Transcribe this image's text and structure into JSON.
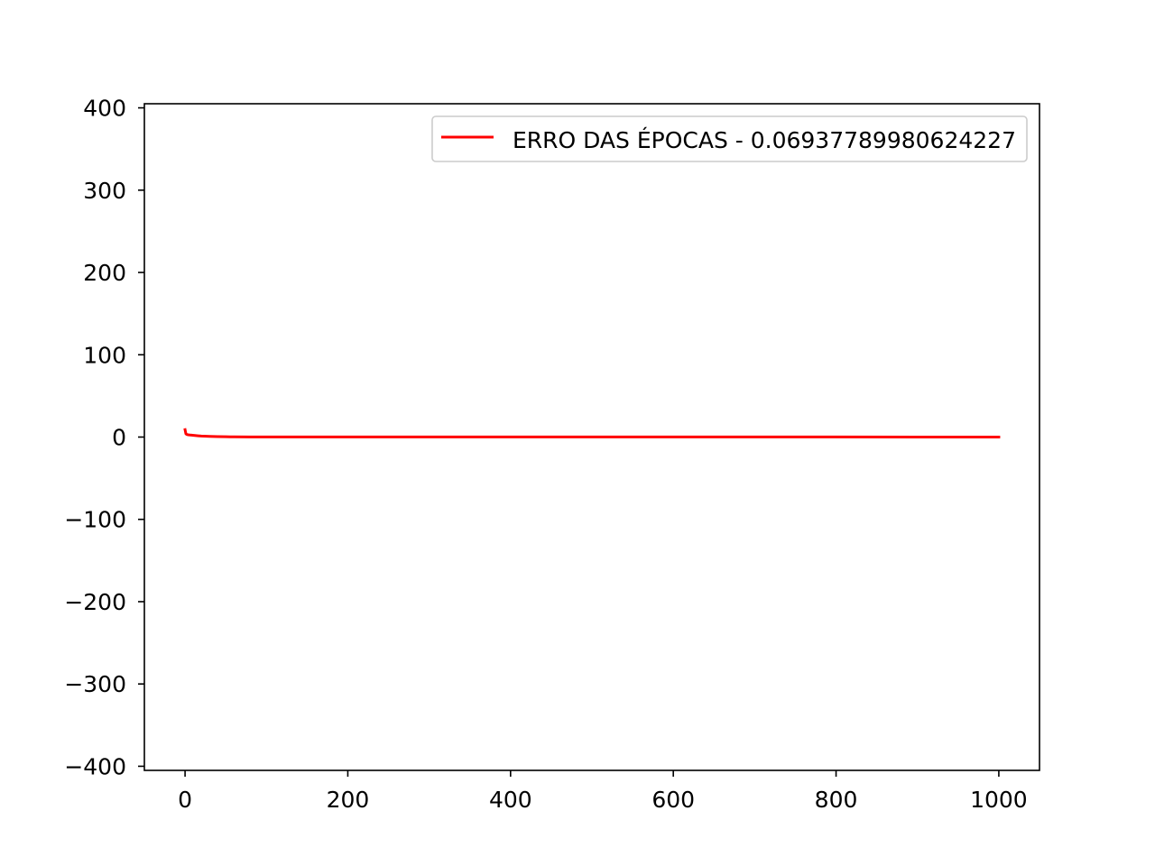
{
  "chart_data": {
    "type": "line",
    "title": "",
    "xlabel": "",
    "ylabel": "",
    "xlim": [
      -50,
      1050
    ],
    "ylim": [
      -405,
      405
    ],
    "xticks": [
      0,
      200,
      400,
      600,
      800,
      1000
    ],
    "yticks": [
      -400,
      -300,
      -200,
      -100,
      0,
      100,
      200,
      300,
      400
    ],
    "xtick_labels": [
      "0",
      "200",
      "400",
      "600",
      "800",
      "1000"
    ],
    "ytick_labels": [
      "−400",
      "−300",
      "−200",
      "−100",
      "0",
      "100",
      "200",
      "300",
      "400"
    ],
    "grid": false,
    "legend": {
      "placement": "upper right"
    },
    "series": [
      {
        "name": "ERRO DAS ÉPOCAS - 0.06937789980624227",
        "color": "#ff0000",
        "x": [
          0,
          1,
          2,
          3,
          5,
          8,
          12,
          16,
          20,
          30,
          40,
          50,
          60,
          80,
          100,
          150,
          200,
          300,
          400,
          500,
          600,
          700,
          800,
          900,
          1000
        ],
        "y": [
          9.0,
          4.0,
          3.2,
          2.9,
          2.6,
          2.3,
          1.9,
          1.5,
          1.2,
          0.8,
          0.5,
          0.35,
          0.25,
          0.18,
          0.14,
          0.11,
          0.1,
          0.09,
          0.085,
          0.08,
          0.077,
          0.074,
          0.072,
          0.07,
          0.0694
        ]
      }
    ]
  }
}
